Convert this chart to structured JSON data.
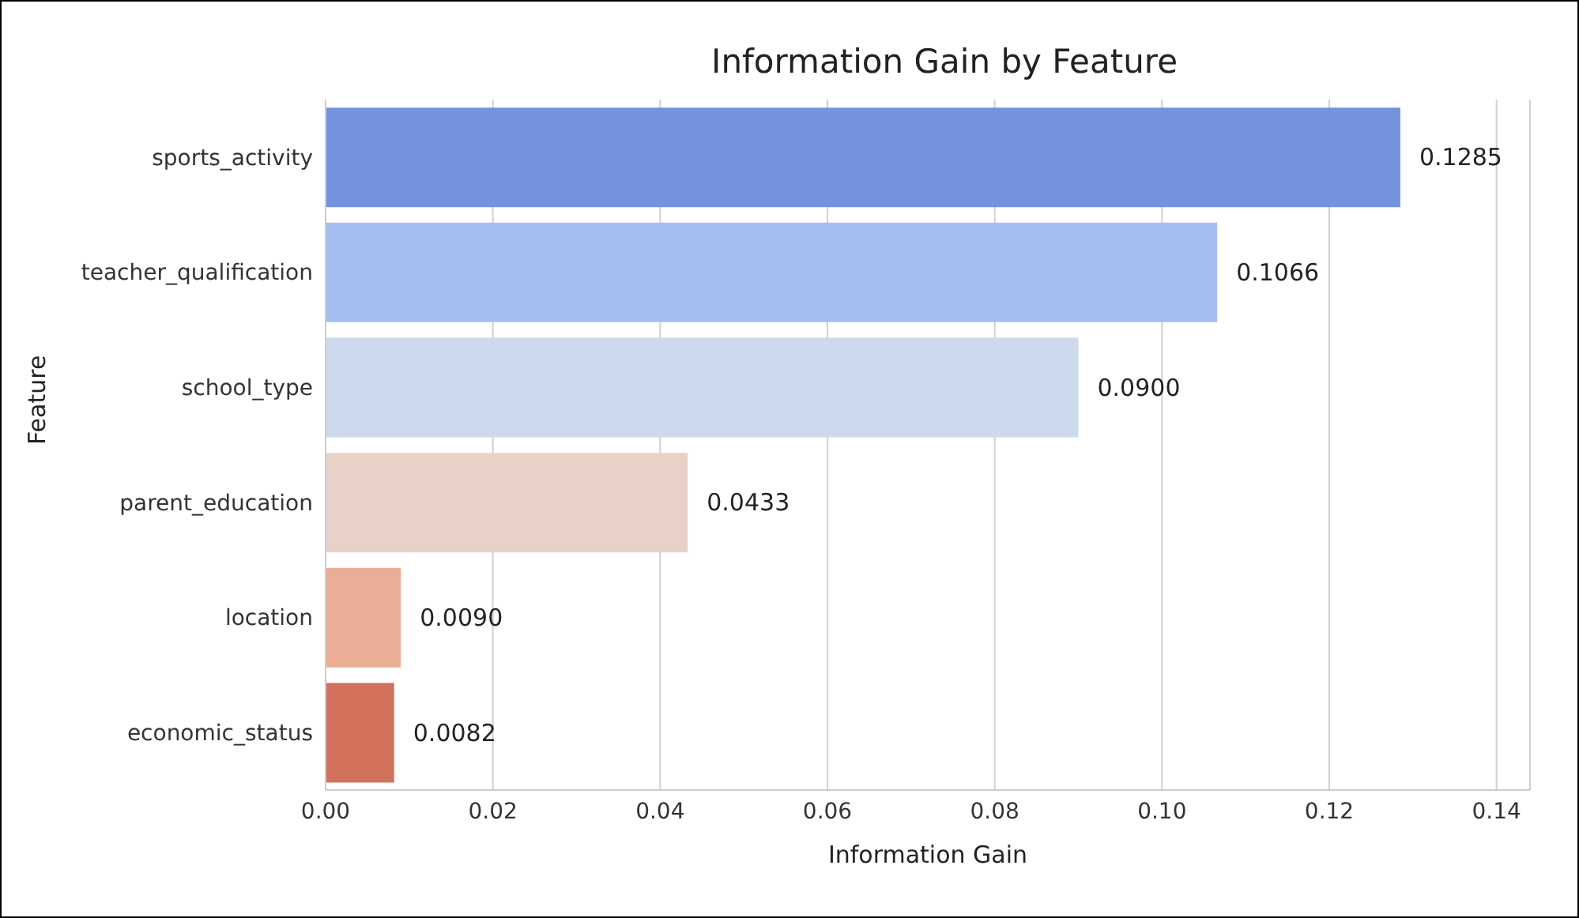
{
  "chart_data": {
    "type": "bar",
    "orientation": "horizontal",
    "title": "Information Gain by Feature",
    "xlabel": "Information Gain",
    "ylabel": "Feature",
    "categories": [
      "sports_activity",
      "teacher_qualification",
      "school_type",
      "parent_education",
      "location",
      "economic_status"
    ],
    "values": [
      0.1285,
      0.1066,
      0.09,
      0.0433,
      0.009,
      0.0082
    ],
    "value_labels": [
      "0.1285",
      "0.1066",
      "0.0900",
      "0.0433",
      "0.0090",
      "0.0082"
    ],
    "colors": [
      "#7493de",
      "#a3bff2",
      "#cdd9ec",
      "#e8d2c8",
      "#eaad95",
      "#d1705b"
    ],
    "xlim": [
      0,
      0.144
    ],
    "xticks": [
      {
        "value": 0,
        "label": "0.00"
      },
      {
        "value": 0.02,
        "label": "0.02"
      },
      {
        "value": 0.04,
        "label": "0.04"
      },
      {
        "value": 0.06,
        "label": "0.06"
      },
      {
        "value": 0.08,
        "label": "0.08"
      },
      {
        "value": 0.1,
        "label": "0.10"
      },
      {
        "value": 0.12,
        "label": "0.12"
      },
      {
        "value": 0.14,
        "label": "0.14"
      }
    ],
    "grid": "x"
  }
}
